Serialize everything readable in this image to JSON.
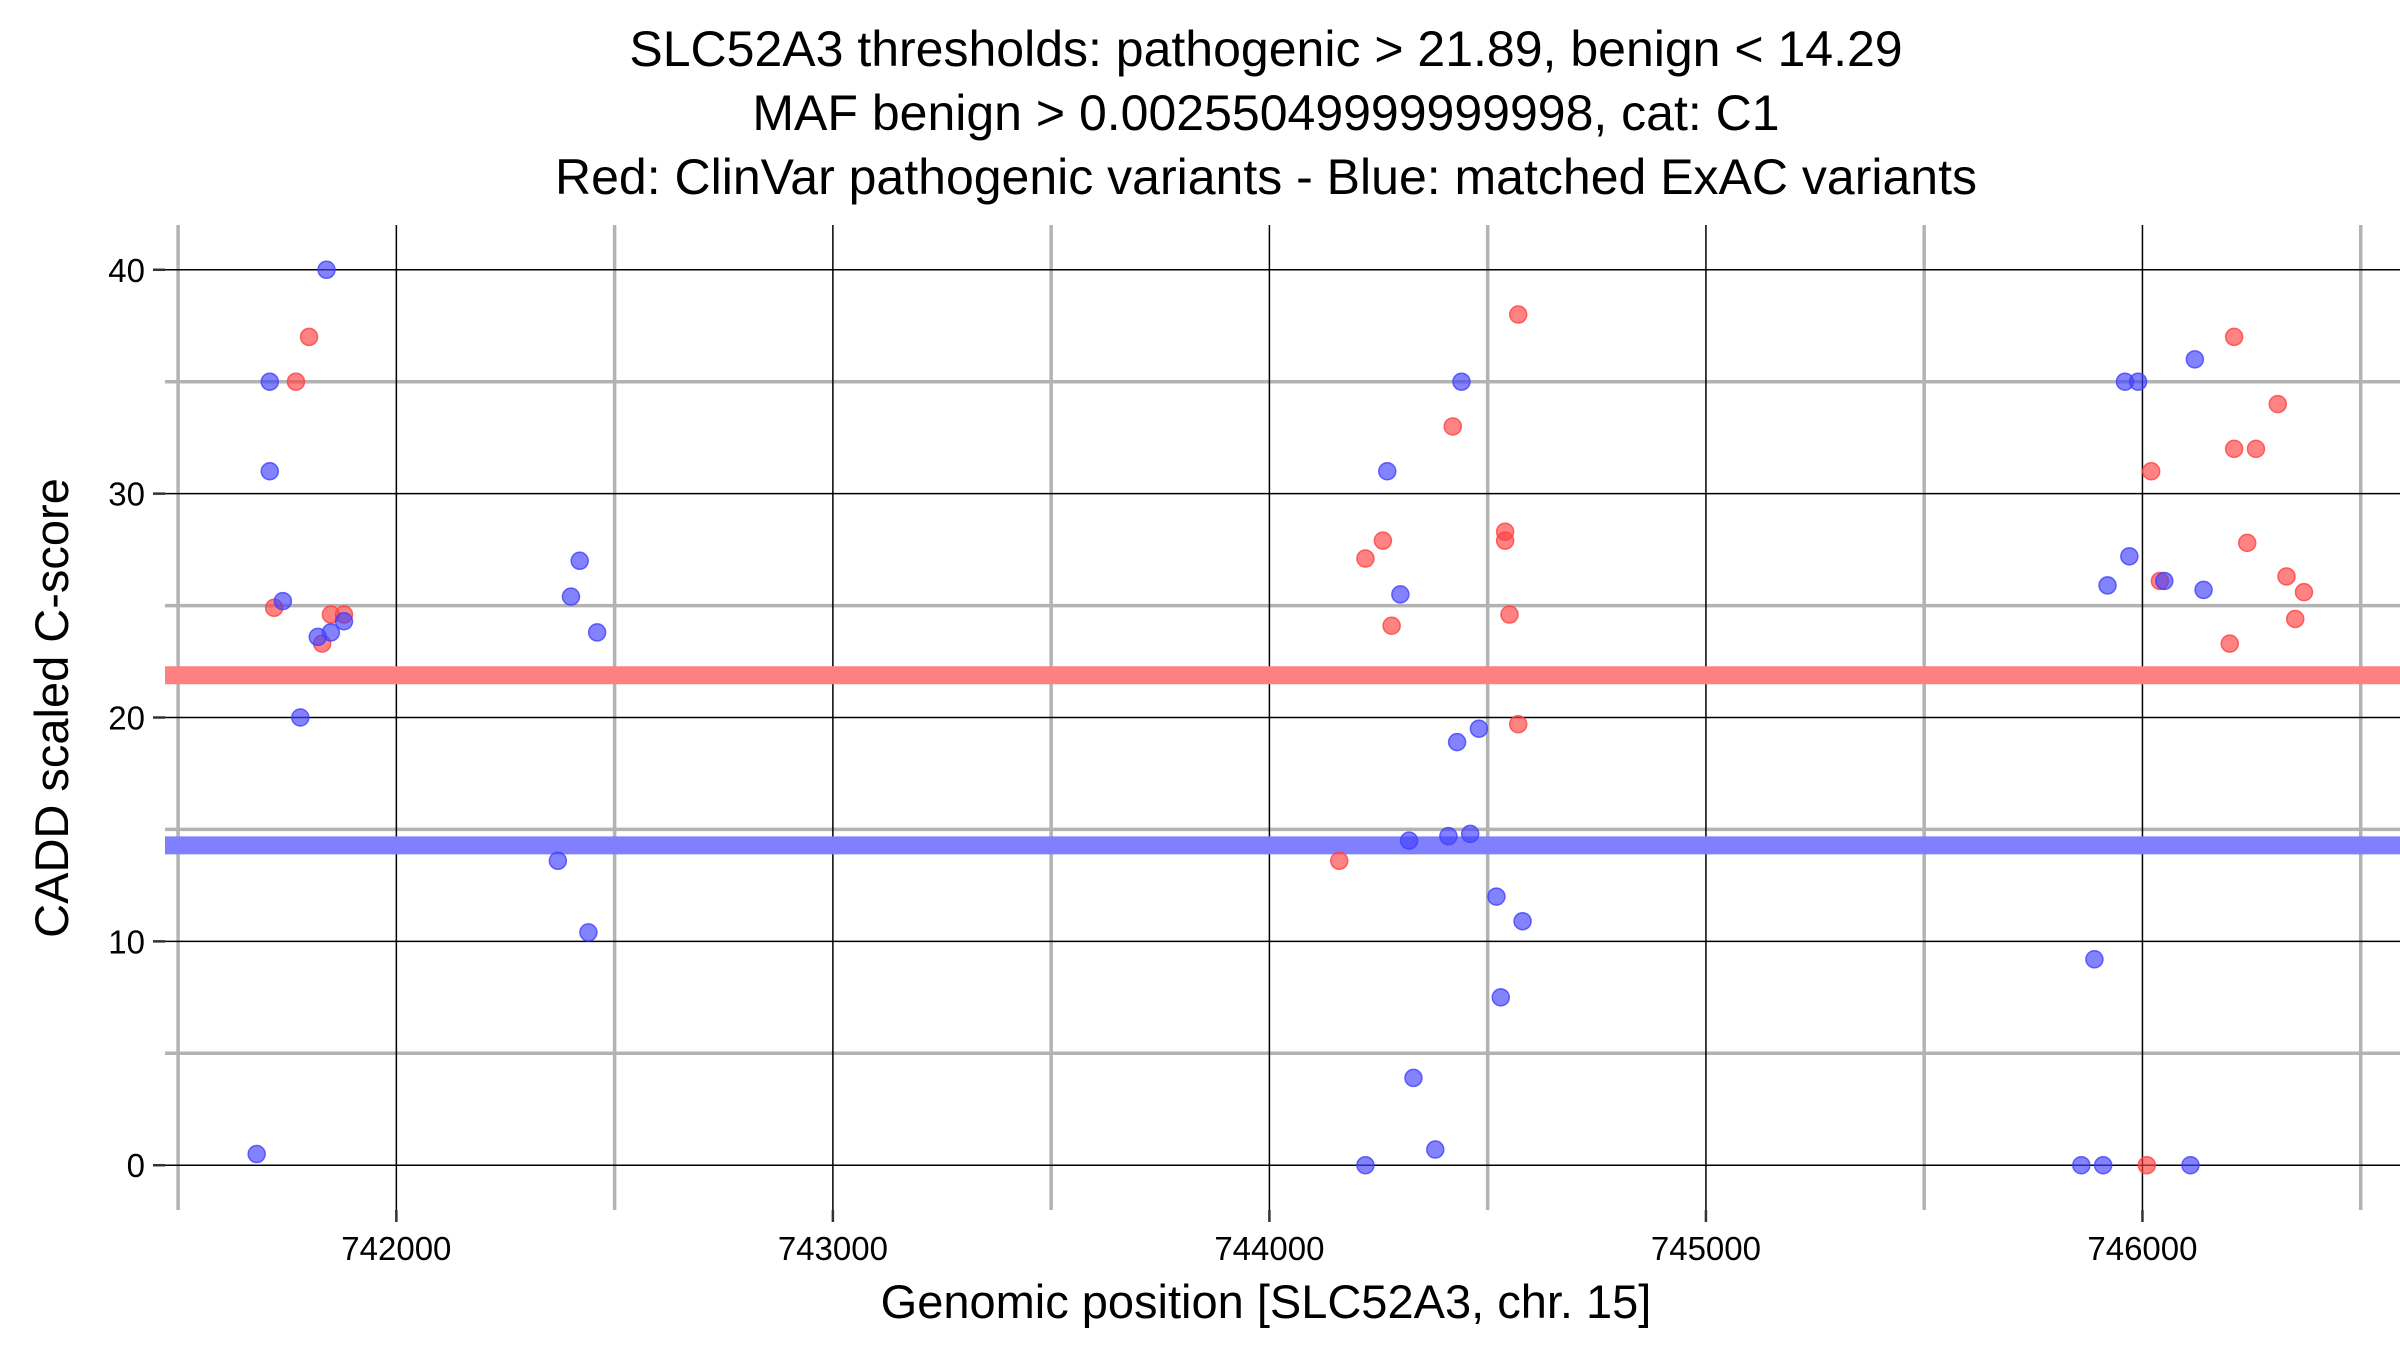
{
  "chart_data": {
    "type": "scatter",
    "title": [
      "SLC52A3 thresholds: pathogenic > 21.89, benign < 14.29",
      "MAF benign > 0.00255049999999998, cat: C1",
      "Red: ClinVar pathogenic variants - Blue: matched ExAC variants"
    ],
    "xlabel": "Genomic position [SLC52A3, chr. 15]",
    "ylabel": "CADD scaled C-score",
    "xlim": [
      741470,
      746590
    ],
    "ylim": [
      -2,
      42
    ],
    "x_ticks": [
      742000,
      743000,
      744000,
      745000,
      746000
    ],
    "x_tick_labels": [
      "742000",
      "743000",
      "744000",
      "745000",
      "746000"
    ],
    "y_ticks": [
      0,
      10,
      20,
      30,
      40
    ],
    "y_tick_labels": [
      "0",
      "10",
      "20",
      "30",
      "40"
    ],
    "grid": true,
    "thresholds": [
      {
        "series": "pathogenic",
        "value": 21.89,
        "color": "#FF8080"
      },
      {
        "series": "benign",
        "value": 14.29,
        "color": "#8080FF"
      }
    ],
    "series": [
      {
        "name": "ClinVar pathogenic variants",
        "color": "#FF4040",
        "points": [
          [
            741720,
            24.9
          ],
          [
            741770,
            35.0
          ],
          [
            741800,
            37.0
          ],
          [
            741830,
            23.3
          ],
          [
            741850,
            24.6
          ],
          [
            741880,
            24.6
          ],
          [
            744160,
            13.6
          ],
          [
            744220,
            27.1
          ],
          [
            744260,
            27.9
          ],
          [
            744280,
            24.1
          ],
          [
            744420,
            33.0
          ],
          [
            744540,
            28.3
          ],
          [
            744540,
            27.9
          ],
          [
            744550,
            24.6
          ],
          [
            744570,
            19.7
          ],
          [
            744570,
            38.0
          ],
          [
            746010,
            0.0
          ],
          [
            746020,
            31.0
          ],
          [
            746040,
            26.1
          ],
          [
            746200,
            23.3
          ],
          [
            746210,
            37.0
          ],
          [
            746210,
            32.0
          ],
          [
            746240,
            27.8
          ],
          [
            746260,
            32.0
          ],
          [
            746310,
            34.0
          ],
          [
            746330,
            26.3
          ],
          [
            746350,
            24.4
          ],
          [
            746370,
            25.6
          ]
        ]
      },
      {
        "name": "matched ExAC variants",
        "color": "#4040FF",
        "points": [
          [
            741680,
            0.5
          ],
          [
            741710,
            35.0
          ],
          [
            741710,
            31.0
          ],
          [
            741740,
            25.2
          ],
          [
            741780,
            20.0
          ],
          [
            741820,
            23.6
          ],
          [
            741840,
            40.0
          ],
          [
            741850,
            23.8
          ],
          [
            741880,
            24.3
          ],
          [
            742370,
            13.6
          ],
          [
            742400,
            25.4
          ],
          [
            742420,
            27.0
          ],
          [
            742440,
            10.4
          ],
          [
            742460,
            23.8
          ],
          [
            744220,
            0.0
          ],
          [
            744270,
            31.0
          ],
          [
            744300,
            25.5
          ],
          [
            744320,
            14.5
          ],
          [
            744330,
            3.9
          ],
          [
            744380,
            0.7
          ],
          [
            744410,
            14.7
          ],
          [
            744430,
            18.9
          ],
          [
            744440,
            35.0
          ],
          [
            744460,
            14.8
          ],
          [
            744480,
            19.5
          ],
          [
            744520,
            12.0
          ],
          [
            744530,
            7.5
          ],
          [
            744580,
            10.9
          ],
          [
            745860,
            0.0
          ],
          [
            745890,
            9.2
          ],
          [
            745910,
            0.0
          ],
          [
            745920,
            25.9
          ],
          [
            745960,
            35.0
          ],
          [
            745970,
            27.2
          ],
          [
            745990,
            35.0
          ],
          [
            746050,
            26.1
          ],
          [
            746110,
            0.0
          ],
          [
            746120,
            36.0
          ],
          [
            746140,
            25.7
          ]
        ]
      }
    ]
  }
}
